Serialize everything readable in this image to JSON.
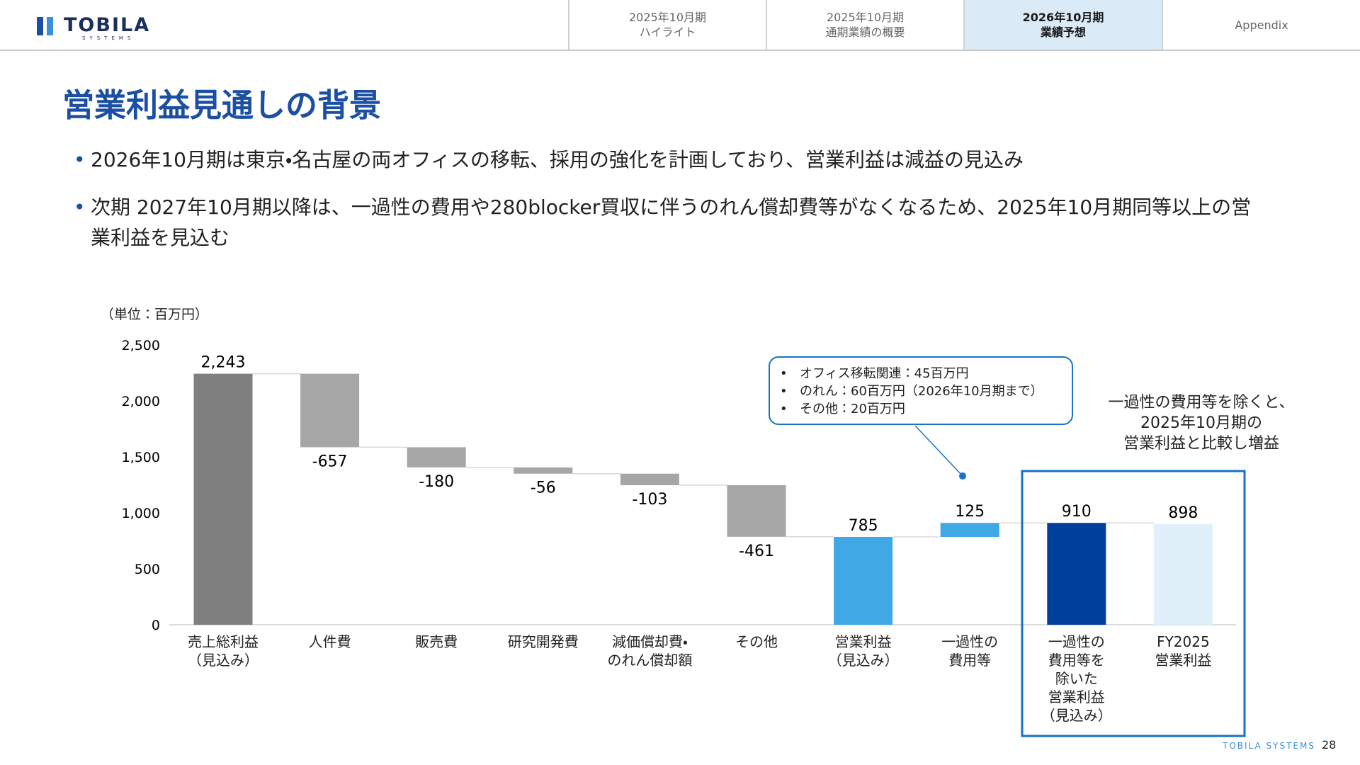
{
  "header": {
    "logo": "TOBILA",
    "logo_sub": "SYSTEMS",
    "tabs": [
      "2025年10月期\nハイライト",
      "2025年10月期\n通期業績の概要",
      "2026年10月期\n業績予想",
      "Appendix"
    ],
    "active_tab": 2
  },
  "title": "営業利益見通しの背景",
  "bullets": [
    "2026年10月期は東京・名古屋の両オフィスの移転、採用の強化を計画しており、営業利益は減益の見込み",
    "次期 2027年10月期以降は、一過性の費用や280blocker買収に伴うのれん償却費等がなくなるため、2025年10月期同等以上の営業利益を見込む"
  ],
  "chart_data": {
    "type": "waterfall",
    "unit_label": "（単位：百万円）",
    "categories": [
      "売上総利益\n（見込み）",
      "人件費",
      "販売費",
      "研究開発費",
      "減価償却費・\nのれん償却額",
      "その他",
      "営業利益\n（見込み）",
      "一過性の\n費用等",
      "一過性の\n費用等を\n除いた\n営業利益\n（見込み）",
      "FY2025\n営業利益"
    ],
    "values": [
      2243,
      -657,
      -180,
      -56,
      -103,
      -461,
      785,
      125,
      910,
      898
    ],
    "value_labels": [
      "2,243",
      "-657",
      "-180",
      "-56",
      "-103",
      "-461",
      "785",
      "125",
      "910",
      "898"
    ],
    "measure": [
      "absolute",
      "relative",
      "relative",
      "relative",
      "relative",
      "relative",
      "absolute",
      "relative",
      "absolute",
      "absolute"
    ],
    "colors": [
      "#7f7f7f",
      "#a6a6a6",
      "#a6a6a6",
      "#a6a6a6",
      "#a6a6a6",
      "#a6a6a6",
      "#41a8e6",
      "#41a8e6",
      "#003f9c",
      "#dff0fb"
    ],
    "ylim": [
      0,
      2500
    ],
    "yticks": [
      0,
      500,
      {
        "value": 1000,
        "label": "1,000"
      },
      {
        "value": 1500,
        "label": "1,500"
      },
      {
        "value": 2000,
        "label": "2,000"
      },
      {
        "value": 2500,
        "label": "2,500"
      }
    ],
    "callout": [
      "オフィス移転関連：45百万円",
      "のれん：60百万円（2026年10月期まで）",
      "その他：20百万円"
    ],
    "annotation": [
      "一過性の費用等を除くと、",
      "2025年10月期の",
      "営業利益と比較し増益"
    ]
  },
  "footer": {
    "brand": "TOBILA SYSTEMS",
    "page": 28
  }
}
